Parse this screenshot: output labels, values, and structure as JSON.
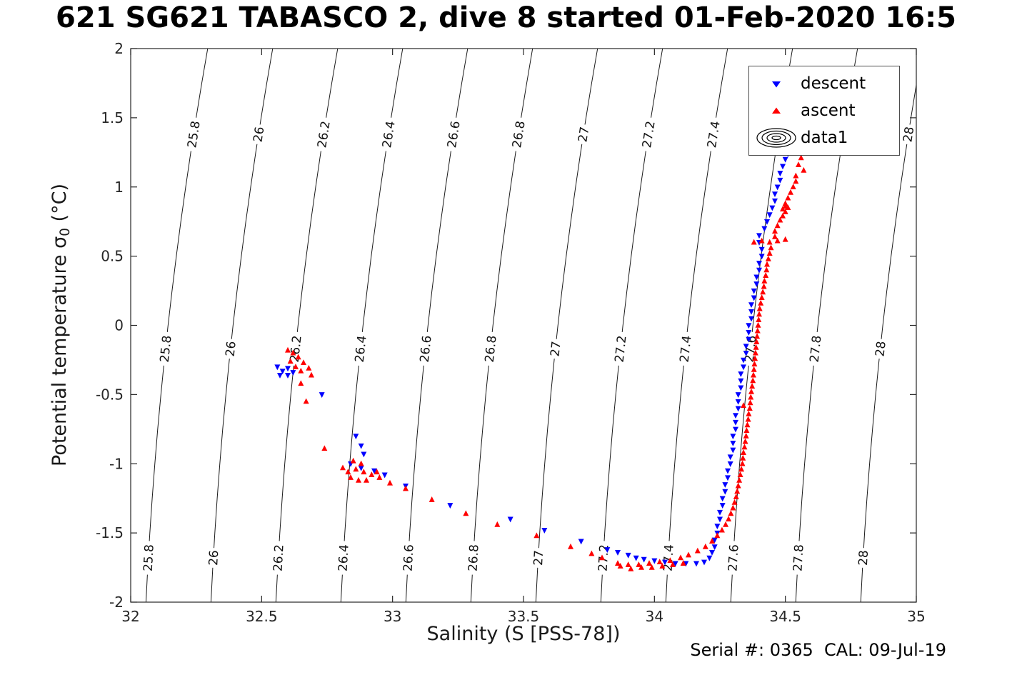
{
  "title": "621 SG621 TABASCO 2, dive 8 started 01-Feb-2020 16:5",
  "footer": {
    "serial_cal": "Serial #: 0365  CAL: 09-Jul-19"
  },
  "chart_data": {
    "type": "scatter",
    "title": "621 SG621 TABASCO 2, dive 8 started 01-Feb-2020 16:5",
    "xlabel": "Salinity (S [PSS-78])",
    "ylabel": "Potential temperature σ₀ (°C)",
    "ylabel_parts": {
      "prefix": "Potential temperature σ",
      "sub": "0",
      "suffix": " (°C)"
    },
    "xlim": [
      32,
      35
    ],
    "ylim": [
      -2,
      2
    ],
    "xticks": [
      32,
      32.5,
      33,
      33.5,
      34,
      34.5,
      35
    ],
    "xtick_labels": [
      "32",
      "32.5",
      "33",
      "33.5",
      "34",
      "34.5",
      "35"
    ],
    "yticks": [
      -2,
      -1.5,
      -1,
      -0.5,
      0,
      0.5,
      1,
      1.5,
      2
    ],
    "ytick_labels": [
      "-2",
      "-1.5",
      "-1",
      "-0.5",
      "0",
      "0.5",
      "1",
      "1.5",
      "2"
    ],
    "grid": false,
    "axis_color": "#262626",
    "legend": {
      "position": "northeast",
      "entries": [
        {
          "label": "descent",
          "marker": "triangle-down",
          "color": "#0000FF"
        },
        {
          "label": "ascent",
          "marker": "triangle-up",
          "color": "#FF0000"
        },
        {
          "label": "data1",
          "marker": "contour-rings",
          "color": "#000000"
        }
      ]
    },
    "contours": {
      "name": "isopycnals-sigma0",
      "levels": [
        25.8,
        26,
        26.2,
        26.4,
        26.6,
        26.8,
        27,
        27.2,
        27.4,
        27.6,
        27.8,
        28
      ],
      "labels": [
        "25.8",
        "26",
        "26.2",
        "26.4",
        "26.6",
        "26.8",
        "27",
        "27.2",
        "27.4",
        "27.6",
        "27.8",
        "28"
      ],
      "label_t": [
        1.38,
        -0.17,
        -1.68
      ],
      "color": "#1a1a1a"
    },
    "series": [
      {
        "name": "descent",
        "marker": "v",
        "color": "#0000FF",
        "points": [
          [
            32.56,
            -0.3
          ],
          [
            32.58,
            -0.33
          ],
          [
            32.6,
            -0.31
          ],
          [
            32.57,
            -0.36
          ],
          [
            32.6,
            -0.36
          ],
          [
            32.62,
            -0.34
          ],
          [
            32.73,
            -0.5
          ],
          [
            32.86,
            -0.8
          ],
          [
            32.88,
            -0.87
          ],
          [
            32.89,
            -0.93
          ],
          [
            32.84,
            -1.0
          ],
          [
            32.88,
            -1.03
          ],
          [
            32.93,
            -1.05
          ],
          [
            32.97,
            -1.08
          ],
          [
            33.05,
            -1.16
          ],
          [
            33.22,
            -1.3
          ],
          [
            33.45,
            -1.4
          ],
          [
            33.58,
            -1.48
          ],
          [
            33.72,
            -1.56
          ],
          [
            33.82,
            -1.62
          ],
          [
            33.86,
            -1.64
          ],
          [
            33.9,
            -1.66
          ],
          [
            33.93,
            -1.68
          ],
          [
            33.96,
            -1.69
          ],
          [
            34.0,
            -1.7
          ],
          [
            34.04,
            -1.71
          ],
          [
            34.08,
            -1.72
          ],
          [
            34.12,
            -1.72
          ],
          [
            34.16,
            -1.72
          ],
          [
            34.19,
            -1.71
          ],
          [
            34.21,
            -1.68
          ],
          [
            34.22,
            -1.64
          ],
          [
            34.23,
            -1.6
          ],
          [
            34.23,
            -1.55
          ],
          [
            34.24,
            -1.5
          ],
          [
            34.24,
            -1.45
          ],
          [
            34.25,
            -1.4
          ],
          [
            34.25,
            -1.35
          ],
          [
            34.26,
            -1.3
          ],
          [
            34.26,
            -1.25
          ],
          [
            34.27,
            -1.2
          ],
          [
            34.27,
            -1.15
          ],
          [
            34.28,
            -1.1
          ],
          [
            34.28,
            -1.05
          ],
          [
            34.29,
            -1.0
          ],
          [
            34.29,
            -0.95
          ],
          [
            34.3,
            -0.9
          ],
          [
            34.3,
            -0.85
          ],
          [
            34.3,
            -0.8
          ],
          [
            34.31,
            -0.75
          ],
          [
            34.31,
            -0.7
          ],
          [
            34.31,
            -0.65
          ],
          [
            34.32,
            -0.6
          ],
          [
            34.32,
            -0.55
          ],
          [
            34.32,
            -0.5
          ],
          [
            34.33,
            -0.45
          ],
          [
            34.33,
            -0.4
          ],
          [
            34.33,
            -0.35
          ],
          [
            34.34,
            -0.3
          ],
          [
            34.34,
            -0.25
          ],
          [
            34.35,
            -0.2
          ],
          [
            34.35,
            -0.15
          ],
          [
            34.36,
            -0.1
          ],
          [
            34.36,
            -0.05
          ],
          [
            34.36,
            0.0
          ],
          [
            34.37,
            0.05
          ],
          [
            34.37,
            0.1
          ],
          [
            34.37,
            0.15
          ],
          [
            34.38,
            0.2
          ],
          [
            34.38,
            0.25
          ],
          [
            34.39,
            0.3
          ],
          [
            34.39,
            0.35
          ],
          [
            34.4,
            0.4
          ],
          [
            34.4,
            0.45
          ],
          [
            34.41,
            0.5
          ],
          [
            34.41,
            0.55
          ],
          [
            34.4,
            0.6
          ],
          [
            34.4,
            0.65
          ],
          [
            34.42,
            0.7
          ],
          [
            34.43,
            0.75
          ],
          [
            34.44,
            0.8
          ],
          [
            34.45,
            0.85
          ],
          [
            34.46,
            0.9
          ],
          [
            34.46,
            0.95
          ],
          [
            34.47,
            1.0
          ],
          [
            34.48,
            1.05
          ],
          [
            34.48,
            1.1
          ],
          [
            34.49,
            1.15
          ],
          [
            34.5,
            1.2
          ],
          [
            34.51,
            1.24
          ],
          [
            34.52,
            1.28
          ]
        ]
      },
      {
        "name": "ascent",
        "marker": "^",
        "color": "#FF0000",
        "points": [
          [
            34.52,
            1.3
          ],
          [
            34.54,
            1.26
          ],
          [
            34.56,
            1.21
          ],
          [
            34.55,
            1.16
          ],
          [
            34.57,
            1.12
          ],
          [
            34.54,
            1.08
          ],
          [
            34.54,
            1.04
          ],
          [
            34.53,
            1.0
          ],
          [
            34.52,
            0.96
          ],
          [
            34.51,
            0.92
          ],
          [
            34.5,
            0.88
          ],
          [
            34.5,
            0.86
          ],
          [
            34.49,
            0.84
          ],
          [
            34.51,
            0.85
          ],
          [
            34.5,
            0.82
          ],
          [
            34.49,
            0.79
          ],
          [
            34.48,
            0.76
          ],
          [
            34.47,
            0.72
          ],
          [
            34.46,
            0.68
          ],
          [
            34.46,
            0.64
          ],
          [
            34.5,
            0.62
          ],
          [
            34.47,
            0.61
          ],
          [
            34.44,
            0.6
          ],
          [
            34.41,
            0.61
          ],
          [
            34.38,
            0.6
          ],
          [
            34.445,
            0.56
          ],
          [
            34.44,
            0.52
          ],
          [
            34.435,
            0.48
          ],
          [
            34.43,
            0.44
          ],
          [
            34.428,
            0.4
          ],
          [
            34.425,
            0.36
          ],
          [
            34.42,
            0.32
          ],
          [
            34.418,
            0.28
          ],
          [
            34.414,
            0.24
          ],
          [
            34.41,
            0.2
          ],
          [
            34.406,
            0.16
          ],
          [
            34.402,
            0.12
          ],
          [
            34.4,
            0.08
          ],
          [
            34.398,
            0.04
          ],
          [
            34.396,
            0.0
          ],
          [
            34.394,
            -0.04
          ],
          [
            34.392,
            -0.08
          ],
          [
            34.39,
            -0.12
          ],
          [
            34.388,
            -0.16
          ],
          [
            34.386,
            -0.2
          ],
          [
            34.384,
            -0.24
          ],
          [
            34.382,
            -0.28
          ],
          [
            34.38,
            -0.32
          ],
          [
            34.378,
            -0.36
          ],
          [
            34.376,
            -0.4
          ],
          [
            34.373,
            -0.44
          ],
          [
            34.37,
            -0.48
          ],
          [
            34.368,
            -0.52
          ],
          [
            34.366,
            -0.56
          ],
          [
            34.34,
            -0.58
          ],
          [
            34.364,
            -0.6
          ],
          [
            34.36,
            -0.64
          ],
          [
            34.358,
            -0.68
          ],
          [
            34.355,
            -0.72
          ],
          [
            34.352,
            -0.76
          ],
          [
            34.35,
            -0.8
          ],
          [
            34.347,
            -0.84
          ],
          [
            34.344,
            -0.88
          ],
          [
            34.34,
            -0.92
          ],
          [
            34.338,
            -0.96
          ],
          [
            34.336,
            -1.0
          ],
          [
            34.332,
            -1.04
          ],
          [
            34.328,
            -1.08
          ],
          [
            34.324,
            -1.12
          ],
          [
            34.32,
            -1.16
          ],
          [
            34.316,
            -1.2
          ],
          [
            34.312,
            -1.24
          ],
          [
            34.306,
            -1.28
          ],
          [
            34.3,
            -1.32
          ],
          [
            34.292,
            -1.36
          ],
          [
            34.283,
            -1.4
          ],
          [
            34.272,
            -1.44
          ],
          [
            34.258,
            -1.48
          ],
          [
            34.24,
            -1.52
          ],
          [
            34.22,
            -1.56
          ],
          [
            34.195,
            -1.6
          ],
          [
            34.165,
            -1.63
          ],
          [
            34.13,
            -1.66
          ],
          [
            34.1,
            -1.68
          ],
          [
            34.06,
            -1.7
          ],
          [
            34.02,
            -1.71
          ],
          [
            33.98,
            -1.72
          ],
          [
            33.94,
            -1.73
          ],
          [
            33.9,
            -1.73
          ],
          [
            33.86,
            -1.72
          ],
          [
            33.95,
            -1.75
          ],
          [
            33.99,
            -1.75
          ],
          [
            34.03,
            -1.74
          ],
          [
            34.07,
            -1.73
          ],
          [
            34.11,
            -1.72
          ],
          [
            33.91,
            -1.76
          ],
          [
            33.87,
            -1.74
          ],
          [
            33.8,
            -1.68
          ],
          [
            33.76,
            -1.65
          ],
          [
            33.68,
            -1.6
          ],
          [
            33.55,
            -1.52
          ],
          [
            33.4,
            -1.44
          ],
          [
            33.28,
            -1.36
          ],
          [
            33.15,
            -1.26
          ],
          [
            33.05,
            -1.18
          ],
          [
            32.99,
            -1.14
          ],
          [
            32.95,
            -1.1
          ],
          [
            32.92,
            -1.08
          ],
          [
            32.89,
            -1.06
          ],
          [
            32.86,
            -1.04
          ],
          [
            32.83,
            -1.06
          ],
          [
            32.81,
            -1.03
          ],
          [
            32.84,
            -1.1
          ],
          [
            32.87,
            -1.12
          ],
          [
            32.9,
            -1.12
          ],
          [
            32.94,
            -1.06
          ],
          [
            32.88,
            -1.0
          ],
          [
            32.85,
            -0.98
          ],
          [
            32.74,
            -0.89
          ],
          [
            32.67,
            -0.55
          ],
          [
            32.65,
            -0.42
          ],
          [
            32.69,
            -0.36
          ],
          [
            32.62,
            -0.2
          ],
          [
            32.64,
            -0.23
          ],
          [
            32.66,
            -0.27
          ],
          [
            32.63,
            -0.3
          ],
          [
            32.61,
            -0.26
          ],
          [
            32.65,
            -0.33
          ],
          [
            32.68,
            -0.31
          ],
          [
            32.6,
            -0.18
          ]
        ]
      }
    ]
  }
}
